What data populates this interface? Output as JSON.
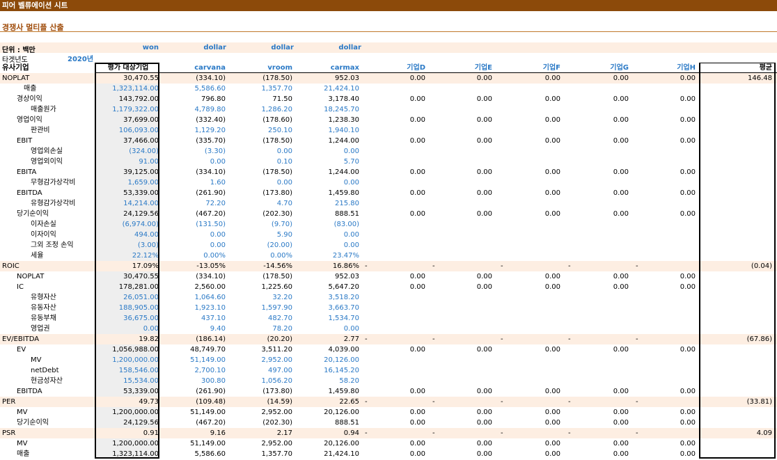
{
  "title": "피어 벨류에이션 시트",
  "subtitle": "경쟁사 멀티플 산출",
  "unit_label": "단위 : 백만",
  "units": [
    "won",
    "dollar",
    "dollar",
    "dollar"
  ],
  "target_label": "타겟년도",
  "year": "2020년",
  "header": {
    "label": "유사기업",
    "cols": [
      "평가 대상기업",
      "carvana",
      "vroom",
      "carmax",
      "기업D",
      "기업E",
      "기업F",
      "기업G",
      "기업H",
      "평균"
    ]
  },
  "rows": [
    {
      "label": "NOPLAT",
      "indent": 0,
      "sec": true,
      "vals": [
        "30,470.55",
        "(334.10)",
        "(178.50)",
        "952.03",
        "0.00",
        "0.00",
        "0.00",
        "0.00",
        "0.00",
        "146.48"
      ]
    },
    {
      "label": "매출",
      "indent": 2,
      "blue": true,
      "vals": [
        "1,323,114.00",
        "5,586.60",
        "1,357.70",
        "21,424.10",
        "",
        "",
        "",
        "",
        "",
        ""
      ]
    },
    {
      "label": "경상이익",
      "indent": 1,
      "vals": [
        "143,792.00",
        "796.80",
        "71.50",
        "3,178.40",
        "0.00",
        "0.00",
        "0.00",
        "0.00",
        "0.00",
        ""
      ]
    },
    {
      "label": "매출원가",
      "indent": 3,
      "blue": true,
      "vals": [
        "1,179,322.00",
        "4,789.80",
        "1,286.20",
        "18,245.70",
        "",
        "",
        "",
        "",
        "",
        ""
      ]
    },
    {
      "label": "영업이익",
      "indent": 1,
      "vals": [
        "37,699.00",
        "(332.40)",
        "(178.60)",
        "1,238.30",
        "0.00",
        "0.00",
        "0.00",
        "0.00",
        "0.00",
        ""
      ]
    },
    {
      "label": "판관비",
      "indent": 3,
      "blue": true,
      "vals": [
        "106,093.00",
        "1,129.20",
        "250.10",
        "1,940.10",
        "",
        "",
        "",
        "",
        "",
        ""
      ]
    },
    {
      "label": "EBIT",
      "indent": 1,
      "vals": [
        "37,466.00",
        "(335.70)",
        "(178.50)",
        "1,244.00",
        "0.00",
        "0.00",
        "0.00",
        "0.00",
        "0.00",
        ""
      ]
    },
    {
      "label": "영업외손실",
      "indent": 3,
      "blue": true,
      "vals": [
        "(324.00)",
        "(3.30)",
        "0.00",
        "0.00",
        "",
        "",
        "",
        "",
        "",
        ""
      ]
    },
    {
      "label": "영업외이익",
      "indent": 3,
      "blue": true,
      "vals": [
        "91.00",
        "0.00",
        "0.10",
        "5.70",
        "",
        "",
        "",
        "",
        "",
        ""
      ]
    },
    {
      "label": "EBITA",
      "indent": 1,
      "vals": [
        "39,125.00",
        "(334.10)",
        "(178.50)",
        "1,244.00",
        "0.00",
        "0.00",
        "0.00",
        "0.00",
        "0.00",
        ""
      ]
    },
    {
      "label": "무형감가상각비",
      "indent": 3,
      "blue": true,
      "vals": [
        "1,659.00",
        "1.60",
        "0.00",
        "0.00",
        "",
        "",
        "",
        "",
        "",
        ""
      ]
    },
    {
      "label": "EBITDA",
      "indent": 1,
      "vals": [
        "53,339.00",
        "(261.90)",
        "(173.80)",
        "1,459.80",
        "0.00",
        "0.00",
        "0.00",
        "0.00",
        "0.00",
        ""
      ]
    },
    {
      "label": "유형감가상각비",
      "indent": 3,
      "blue": true,
      "vals": [
        "14,214.00",
        "72.20",
        "4.70",
        "215.80",
        "",
        "",
        "",
        "",
        "",
        ""
      ]
    },
    {
      "label": "당기순이익",
      "indent": 1,
      "vals": [
        "24,129.56",
        "(467.20)",
        "(202.30)",
        "888.51",
        "0.00",
        "0.00",
        "0.00",
        "0.00",
        "0.00",
        ""
      ]
    },
    {
      "label": "이자손실",
      "indent": 3,
      "blue": true,
      "vals": [
        "(6,974.00)",
        "(131.50)",
        "(9.70)",
        "(83.00)",
        "",
        "",
        "",
        "",
        "",
        ""
      ]
    },
    {
      "label": "이자이익",
      "indent": 3,
      "blue": true,
      "vals": [
        "494.00",
        "0.00",
        "5.90",
        "0.00",
        "",
        "",
        "",
        "",
        "",
        ""
      ]
    },
    {
      "label": "그외 조정 손익",
      "indent": 3,
      "blue": true,
      "vals": [
        "(3.00)",
        "0.00",
        "(20.00)",
        "0.00",
        "",
        "",
        "",
        "",
        "",
        ""
      ]
    },
    {
      "label": "세율",
      "indent": 3,
      "blue": true,
      "vals": [
        "22.12%",
        "0.00%",
        "0.00%",
        "23.47%",
        "",
        "",
        "",
        "",
        "",
        ""
      ]
    },
    {
      "label": "ROIC",
      "indent": 0,
      "sec": true,
      "dashes": true,
      "vals": [
        "17.09%",
        "-13.05%",
        "-14.56%",
        "16.86%",
        "",
        "",
        "",
        "",
        "",
        "(0.04)"
      ]
    },
    {
      "label": "NOPLAT",
      "indent": 1,
      "vals": [
        "30,470.55",
        "(334.10)",
        "(178.50)",
        "952.03",
        "0.00",
        "0.00",
        "0.00",
        "0.00",
        "0.00",
        ""
      ]
    },
    {
      "label": "IC",
      "indent": 1,
      "vals": [
        "178,281.00",
        "2,560.00",
        "1,225.60",
        "5,647.20",
        "0.00",
        "0.00",
        "0.00",
        "0.00",
        "0.00",
        ""
      ]
    },
    {
      "label": "유형자산",
      "indent": 3,
      "blue": true,
      "vals": [
        "26,051.00",
        "1,064.60",
        "32.20",
        "3,518.20",
        "",
        "",
        "",
        "",
        "",
        ""
      ]
    },
    {
      "label": "유동자산",
      "indent": 3,
      "blue": true,
      "vals": [
        "188,905.00",
        "1,923.10",
        "1,597.90",
        "3,663.70",
        "",
        "",
        "",
        "",
        "",
        ""
      ]
    },
    {
      "label": "유동부채",
      "indent": 3,
      "blue": true,
      "vals": [
        "36,675.00",
        "437.10",
        "482.70",
        "1,534.70",
        "",
        "",
        "",
        "",
        "",
        ""
      ]
    },
    {
      "label": "영업권",
      "indent": 3,
      "blue": true,
      "vals": [
        "0.00",
        "9.40",
        "78.20",
        "0.00",
        "",
        "",
        "",
        "",
        "",
        ""
      ]
    },
    {
      "label": "EV/EBITDA",
      "indent": 0,
      "sec": true,
      "dashes": true,
      "vals": [
        "19.82",
        "(186.14)",
        "(20.20)",
        "2.77",
        "",
        "",
        "",
        "",
        "",
        "(67.86)"
      ]
    },
    {
      "label": "EV",
      "indent": 1,
      "vals": [
        "1,056,988.00",
        "48,749.70",
        "3,511.20",
        "4,039.00",
        "0.00",
        "0.00",
        "0.00",
        "0.00",
        "0.00",
        ""
      ]
    },
    {
      "label": "MV",
      "indent": 3,
      "blue": true,
      "blacklabel": true,
      "vals": [
        "1,200,000.00",
        "51,149.00",
        "2,952.00",
        "20,126.00",
        "",
        "",
        "",
        "",
        "",
        ""
      ]
    },
    {
      "label": "netDebt",
      "indent": 3,
      "blue": true,
      "blacklabel": true,
      "vals": [
        "158,546.00",
        "2,700.10",
        "497.00",
        "16,145.20",
        "",
        "",
        "",
        "",
        "",
        ""
      ]
    },
    {
      "label": "현금성자산",
      "indent": 3,
      "blue": true,
      "blacklabel": true,
      "vals": [
        "15,534.00",
        "300.80",
        "1,056.20",
        "58.20",
        "",
        "",
        "",
        "",
        "",
        ""
      ]
    },
    {
      "label": "EBITDA",
      "indent": 1,
      "vals": [
        "53,339.00",
        "(261.90)",
        "(173.80)",
        "1,459.80",
        "0.00",
        "0.00",
        "0.00",
        "0.00",
        "0.00",
        ""
      ]
    },
    {
      "label": "PER",
      "indent": 0,
      "sec": true,
      "dashes": true,
      "vals": [
        "49.73",
        "(109.48)",
        "(14.59)",
        "22.65",
        "",
        "",
        "",
        "",
        "",
        "(33.81)"
      ]
    },
    {
      "label": "MV",
      "indent": 1,
      "vals": [
        "1,200,000.00",
        "51,149.00",
        "2,952.00",
        "20,126.00",
        "0.00",
        "0.00",
        "0.00",
        "0.00",
        "0.00",
        ""
      ]
    },
    {
      "label": "당기순이익",
      "indent": 1,
      "vals": [
        "24,129.56",
        "(467.20)",
        "(202.30)",
        "888.51",
        "0.00",
        "0.00",
        "0.00",
        "0.00",
        "0.00",
        ""
      ]
    },
    {
      "label": "PSR",
      "indent": 0,
      "sec": true,
      "dashes": true,
      "vals": [
        "0.91",
        "9.16",
        "2.17",
        "0.94",
        "",
        "",
        "",
        "",
        "",
        "4.09"
      ]
    },
    {
      "label": "MV",
      "indent": 1,
      "vals": [
        "1,200,000.00",
        "51,149.00",
        "2,952.00",
        "20,126.00",
        "0.00",
        "0.00",
        "0.00",
        "0.00",
        "0.00",
        ""
      ]
    },
    {
      "label": "매출",
      "indent": 1,
      "vals": [
        "1,323,114.00",
        "5,586.60",
        "1,357.70",
        "21,424.10",
        "0.00",
        "0.00",
        "0.00",
        "0.00",
        "0.00",
        ""
      ]
    }
  ],
  "dash_char": "-"
}
